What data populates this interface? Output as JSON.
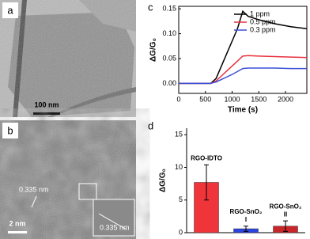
{
  "panels": {
    "a": "a",
    "b": "b",
    "c": "c",
    "d": "d",
    "scale_a": "100 nm",
    "scale_b": "2 nm",
    "spacing_1": "0.335 nm",
    "spacing_2": "0.335 nm"
  },
  "chart_data": [
    {
      "type": "line",
      "y_label": "ΔG/G₀",
      "x_label": "Time (s)",
      "x": [
        0,
        300,
        600,
        700,
        800,
        900,
        1000,
        1100,
        1200,
        1300,
        1500,
        1800,
        2100,
        2400
      ],
      "series": [
        {
          "name": "1 ppm",
          "color": "#000000",
          "values": [
            0,
            0,
            0,
            0.01,
            0.035,
            0.06,
            0.085,
            0.11,
            0.145,
            0.135,
            0.128,
            0.12,
            0.114,
            0.11
          ]
        },
        {
          "name": "0.5 ppm",
          "color": "#e8303e",
          "values": [
            0,
            0,
            0,
            0.005,
            0.015,
            0.025,
            0.035,
            0.045,
            0.055,
            0.056,
            0.055,
            0.054,
            0.053,
            0.052
          ]
        },
        {
          "name": "0.3 ppm",
          "color": "#3a4fd8",
          "values": [
            0,
            0,
            0,
            0.003,
            0.008,
            0.013,
            0.018,
            0.024,
            0.03,
            0.031,
            0.031,
            0.031,
            0.03,
            0.03
          ]
        }
      ],
      "xlim": [
        0,
        2400
      ],
      "xticks": [
        0,
        500,
        1000,
        1500,
        2000
      ],
      "ylim": [
        -0.02,
        0.155
      ],
      "yticks": [
        {
          "value": 0,
          "label": "0.00"
        },
        {
          "value": 0.05,
          "label": "0.05"
        },
        {
          "value": 0.1,
          "label": "0.10"
        },
        {
          "value": 0.15,
          "label": "0.15"
        }
      ],
      "legend": "upper-right"
    },
    {
      "type": "bar",
      "y_label": "ΔG/G₀",
      "categories": [
        [
          "RGO-IDTO"
        ],
        [
          "RGO-SnO₂",
          "I"
        ],
        [
          "RGO-SnO₂",
          "II"
        ]
      ],
      "values": [
        7.7,
        0.6,
        1.0
      ],
      "errors": [
        2.7,
        0.4,
        0.8
      ],
      "colors": [
        "#f0353a",
        "#2b43e0",
        "#c8262a"
      ],
      "ylim": [
        0,
        16
      ],
      "yticks": [
        0,
        5,
        10,
        15
      ]
    }
  ]
}
